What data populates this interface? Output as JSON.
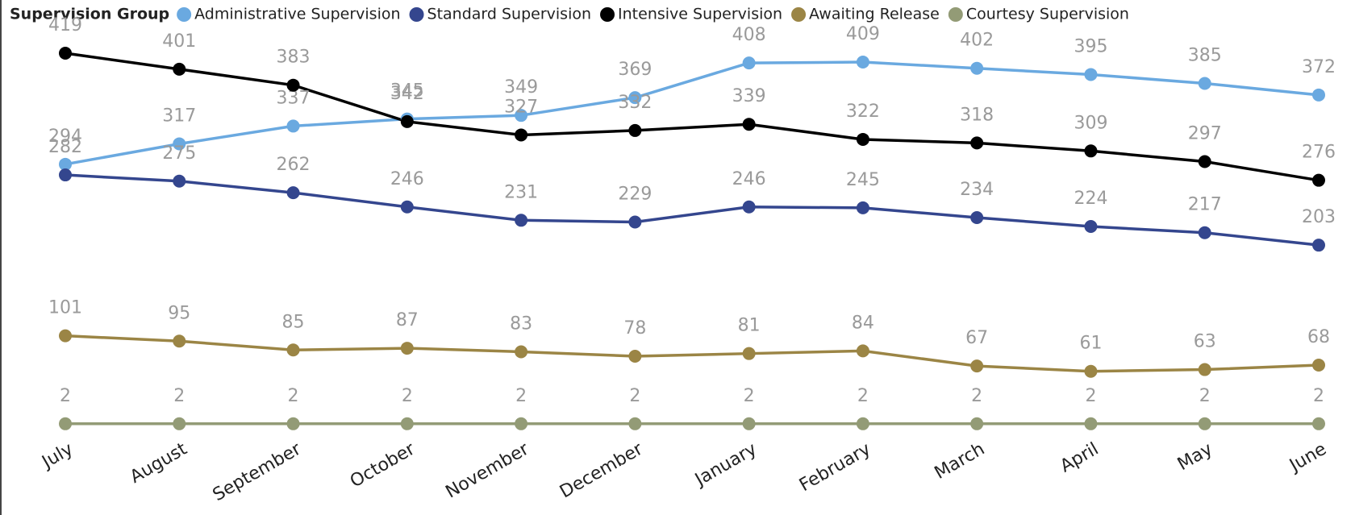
{
  "chart_data": {
    "type": "line",
    "legend_title": "Supervision Group",
    "categories": [
      "July",
      "August",
      "September",
      "October",
      "November",
      "December",
      "January",
      "February",
      "March",
      "April",
      "May",
      "June"
    ],
    "series": [
      {
        "name": "Administrative Supervision",
        "color": "#6aa9e0",
        "values": [
          294,
          317,
          337,
          345,
          349,
          369,
          408,
          409,
          402,
          395,
          385,
          372
        ]
      },
      {
        "name": "Standard Supervision",
        "color": "#34468e",
        "values": [
          282,
          275,
          262,
          246,
          231,
          229,
          246,
          245,
          234,
          224,
          217,
          203
        ]
      },
      {
        "name": "Intensive Supervision",
        "color": "#000000",
        "values": [
          419,
          401,
          383,
          342,
          327,
          332,
          339,
          322,
          318,
          309,
          297,
          276
        ]
      },
      {
        "name": "Awaiting Release",
        "color": "#9b8545",
        "values": [
          101,
          95,
          85,
          87,
          83,
          78,
          81,
          84,
          67,
          61,
          63,
          68
        ]
      },
      {
        "name": "Courtesy Supervision",
        "color": "#939b76",
        "values": [
          2,
          2,
          2,
          2,
          2,
          2,
          2,
          2,
          2,
          2,
          2,
          2
        ]
      }
    ],
    "legend": "top-left"
  }
}
